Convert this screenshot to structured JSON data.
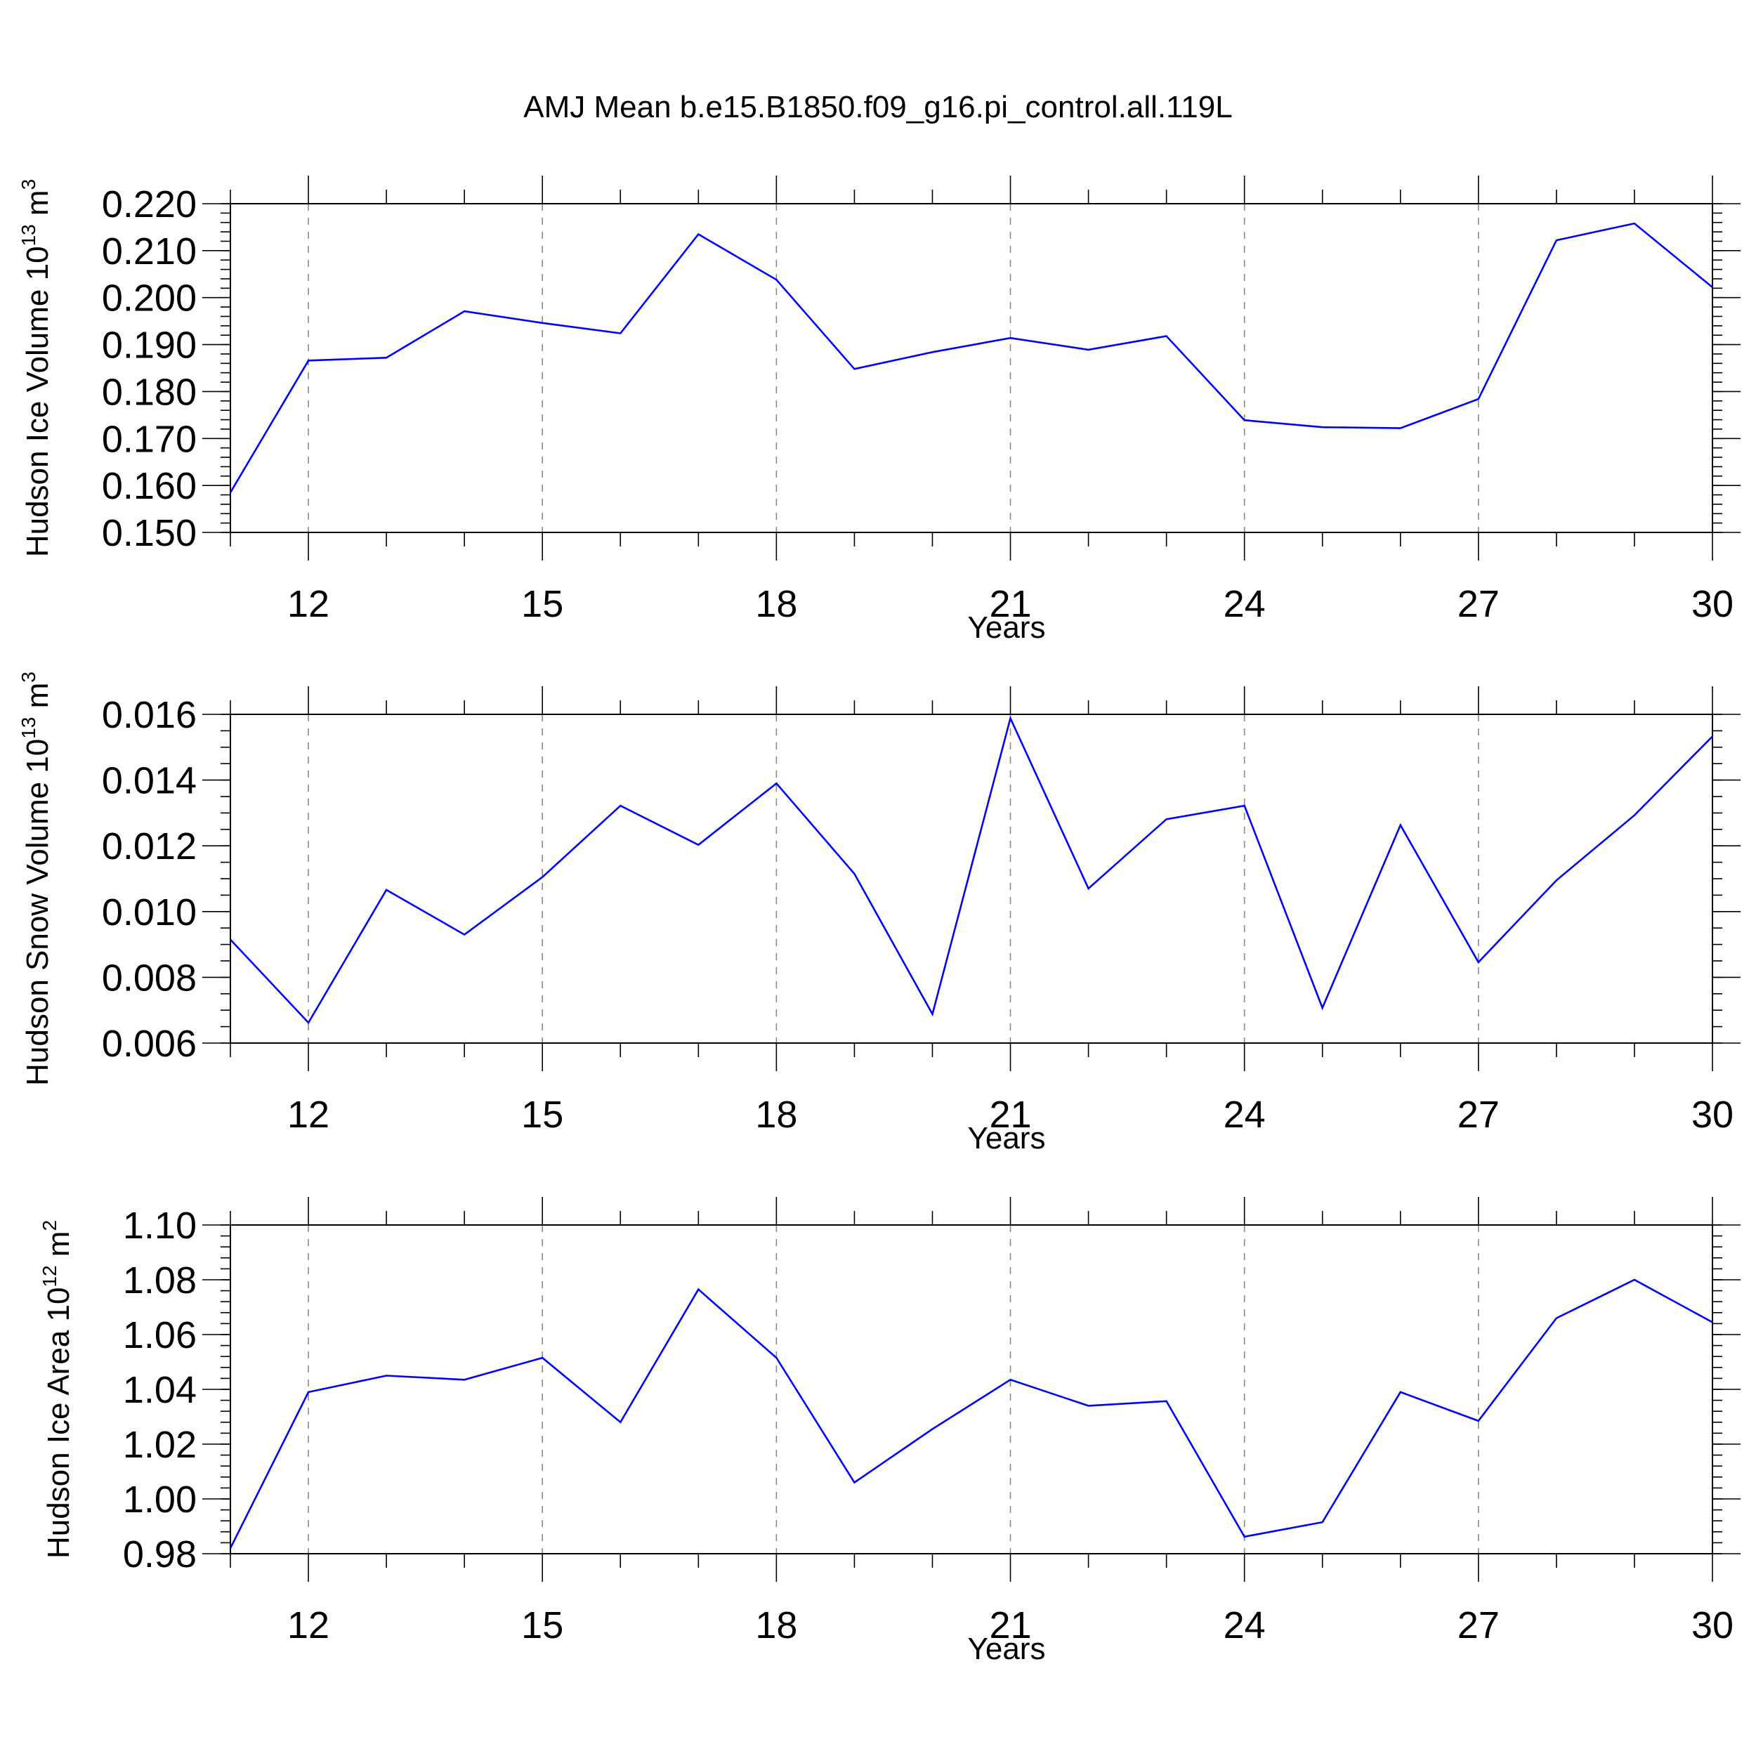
{
  "title": "AMJ Mean b.e15.B1850.f09_g16.pi_control.all.119L",
  "colors": {
    "series": "#0000ff",
    "grid": "#888888",
    "axes": "#000000"
  },
  "chart_data": [
    {
      "type": "line",
      "xlabel": "Years",
      "ylabel": {
        "base": "Hudson Ice Volume 10",
        "exp": "13",
        "unit": " m",
        "unit_exp": "3"
      },
      "xlim": [
        11,
        30
      ],
      "ylim": [
        0.15,
        0.22
      ],
      "xticks": [
        12,
        15,
        18,
        21,
        24,
        27,
        30
      ],
      "yticks": [
        "0.150",
        "0.160",
        "0.170",
        "0.180",
        "0.190",
        "0.200",
        "0.210",
        "0.220"
      ],
      "y_minor_step": 0.002,
      "grid": "vertical dashed at labeled x ticks",
      "x": [
        11,
        12,
        13,
        14,
        15,
        16,
        17,
        18,
        19,
        20,
        21,
        22,
        23,
        24,
        25,
        26,
        27,
        28,
        29,
        30
      ],
      "values": [
        0.1585,
        0.1866,
        0.1872,
        0.1971,
        0.1946,
        0.1924,
        0.2135,
        0.2038,
        0.1848,
        0.1884,
        0.1914,
        0.1889,
        0.1918,
        0.1739,
        0.1724,
        0.1722,
        0.1784,
        0.2122,
        0.2158,
        0.2022
      ]
    },
    {
      "type": "line",
      "xlabel": "Years",
      "ylabel": {
        "base": "Hudson Snow Volume 10",
        "exp": "13",
        "unit": " m",
        "unit_exp": "3"
      },
      "xlim": [
        11,
        30
      ],
      "ylim": [
        0.006,
        0.016
      ],
      "xticks": [
        12,
        15,
        18,
        21,
        24,
        27,
        30
      ],
      "yticks": [
        "0.006",
        "0.008",
        "0.010",
        "0.012",
        "0.014",
        "0.016"
      ],
      "y_minor_step": 0.0005,
      "grid": "vertical dashed at labeled x ticks",
      "x": [
        11,
        12,
        13,
        14,
        15,
        16,
        17,
        18,
        19,
        20,
        21,
        22,
        23,
        24,
        25,
        26,
        27,
        28,
        29,
        30
      ],
      "values": [
        0.00915,
        0.00662,
        0.01066,
        0.0093,
        0.01105,
        0.01322,
        0.01203,
        0.0139,
        0.01115,
        0.00688,
        0.01588,
        0.0107,
        0.01281,
        0.01322,
        0.00707,
        0.01263,
        0.00846,
        0.01095,
        0.01293,
        0.01533
      ]
    },
    {
      "type": "line",
      "xlabel": "Years",
      "ylabel": {
        "base": "Hudson Ice Area 10",
        "exp": "12",
        "unit": " m",
        "unit_exp": "2"
      },
      "xlim": [
        11,
        30
      ],
      "ylim": [
        0.98,
        1.1
      ],
      "xticks": [
        12,
        15,
        18,
        21,
        24,
        27,
        30
      ],
      "yticks": [
        "0.98",
        "1.00",
        "1.02",
        "1.04",
        "1.06",
        "1.08",
        "1.10"
      ],
      "y_minor_step": 0.004,
      "grid": "vertical dashed at labeled x ticks",
      "x": [
        11,
        12,
        13,
        14,
        15,
        16,
        17,
        18,
        19,
        20,
        21,
        22,
        23,
        24,
        25,
        26,
        27,
        28,
        29,
        30
      ],
      "values": [
        0.982,
        1.039,
        1.045,
        1.0435,
        1.0515,
        1.028,
        1.0765,
        1.0515,
        1.006,
        1.0255,
        1.0435,
        1.034,
        1.0357,
        0.9862,
        0.9915,
        1.039,
        1.0285,
        1.066,
        1.08,
        1.0645
      ]
    }
  ]
}
